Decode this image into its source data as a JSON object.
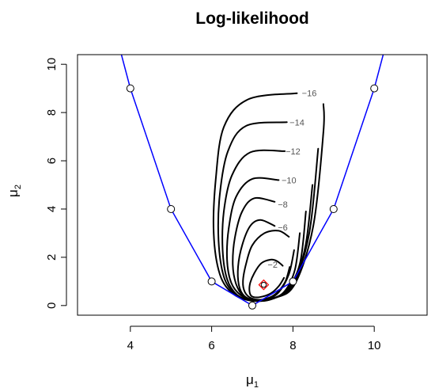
{
  "chart_data": {
    "type": "line",
    "title": "Log-likelihood",
    "xlabel": "μ",
    "xlabel_sub": "1",
    "ylabel": "μ",
    "ylabel_sub": "2",
    "xlim": [
      2.7,
      11.3
    ],
    "ylim": [
      -0.4,
      10.4
    ],
    "xticks": [
      4,
      6,
      8,
      10
    ],
    "yticks": [
      0,
      2,
      4,
      6,
      8,
      10
    ],
    "grid": false,
    "colors": {
      "boundary": "#0000ff",
      "contour": "#000000",
      "mle_marker": "#ff0000",
      "points": "#000000"
    },
    "boundary_curve": {
      "x": [
        3.78,
        4,
        5,
        6,
        7,
        8,
        9,
        10,
        10.22
      ],
      "y": [
        10.4,
        9,
        4,
        1,
        0,
        1,
        4,
        9,
        10.4
      ]
    },
    "boundary_points": {
      "x": [
        4,
        5,
        6,
        7,
        8,
        9,
        10
      ],
      "y": [
        9,
        4,
        1,
        0,
        1,
        4,
        9
      ]
    },
    "mle_point": {
      "x": 7.28,
      "y": 0.86
    },
    "contour_levels": [
      {
        "level": -2,
        "label": "−2",
        "label_x": 7.5,
        "label_y": 1.7,
        "xs": [
          7.75,
          7.6,
          7.45,
          7.22,
          7.05,
          6.95,
          6.93,
          6.99,
          7.18,
          7.45,
          7.65,
          7.78
        ],
        "ys": [
          1.65,
          1.85,
          1.9,
          1.75,
          1.35,
          0.95,
          0.6,
          0.38,
          0.35,
          0.5,
          0.8,
          1.15
        ]
      },
      {
        "level": -4,
        "label": "",
        "label_x": 0,
        "label_y": 0,
        "xs": [
          7.9,
          7.65,
          7.3,
          7.0,
          6.85,
          6.77,
          6.82,
          6.98,
          7.25,
          7.55,
          7.8,
          7.92
        ],
        "ys": [
          2.85,
          3.1,
          3.0,
          2.5,
          1.75,
          1.0,
          0.55,
          0.3,
          0.25,
          0.45,
          0.95,
          1.6
        ]
      },
      {
        "level": -6,
        "label": "−6",
        "label_x": 7.75,
        "label_y": 3.25,
        "xs": [
          7.55,
          7.2,
          6.95,
          6.75,
          6.65,
          6.67,
          6.8,
          7.05,
          7.35,
          7.65,
          7.9,
          8.03
        ],
        "ys": [
          3.3,
          3.55,
          3.3,
          2.5,
          1.6,
          0.85,
          0.4,
          0.22,
          0.25,
          0.55,
          1.3,
          2.3
        ]
      },
      {
        "level": -8,
        "label": "−8",
        "label_x": 7.75,
        "label_y": 4.2,
        "xs": [
          7.55,
          7.05,
          6.75,
          6.57,
          6.52,
          6.6,
          6.78,
          7.08,
          7.45,
          7.8,
          8.05,
          8.17
        ],
        "ys": [
          4.3,
          4.45,
          3.9,
          2.8,
          1.7,
          0.9,
          0.4,
          0.2,
          0.25,
          0.6,
          1.5,
          3.0
        ]
      },
      {
        "level": -10,
        "label": "−10",
        "label_x": 7.9,
        "label_y": 5.2,
        "xs": [
          7.65,
          7.0,
          6.6,
          6.42,
          6.38,
          6.48,
          6.72,
          7.05,
          7.48,
          7.88,
          8.18,
          8.32
        ],
        "ys": [
          5.2,
          5.25,
          4.5,
          3.2,
          1.9,
          0.95,
          0.42,
          0.2,
          0.28,
          0.7,
          1.8,
          3.9
        ]
      },
      {
        "level": -12,
        "label": "−12",
        "label_x": 8.0,
        "label_y": 6.4,
        "xs": [
          7.8,
          6.95,
          6.5,
          6.3,
          6.27,
          6.38,
          6.62,
          7.0,
          7.5,
          7.95,
          8.3,
          8.48
        ],
        "ys": [
          6.4,
          6.35,
          5.4,
          3.9,
          2.3,
          1.1,
          0.45,
          0.2,
          0.28,
          0.8,
          2.4,
          5.0
        ]
      },
      {
        "level": -14,
        "label": "−14",
        "label_x": 8.1,
        "label_y": 7.6,
        "xs": [
          7.85,
          6.85,
          6.4,
          6.2,
          6.17,
          6.3,
          6.58,
          6.98,
          7.52,
          8.0,
          8.4,
          8.62
        ],
        "ys": [
          7.6,
          7.45,
          6.4,
          4.6,
          2.7,
          1.2,
          0.48,
          0.2,
          0.3,
          0.85,
          3.0,
          6.5
        ]
      },
      {
        "level": -16,
        "label": "−16",
        "label_x": 8.4,
        "label_y": 8.8,
        "xs": [
          8.1,
          6.9,
          6.3,
          6.1,
          6.05,
          6.2,
          6.52,
          6.95,
          7.55,
          8.05,
          8.5,
          8.75,
          8.75
        ],
        "ys": [
          8.8,
          8.55,
          7.4,
          5.2,
          3.0,
          1.3,
          0.5,
          0.22,
          0.32,
          0.9,
          3.3,
          7.2,
          8.35
        ]
      }
    ]
  }
}
